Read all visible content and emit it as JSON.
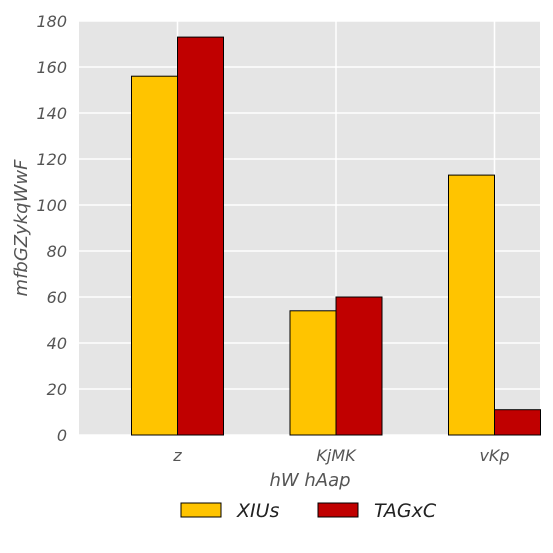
{
  "chart_data": {
    "type": "bar",
    "categories": [
      "z",
      "KjMK",
      "vKp"
    ],
    "series": [
      {
        "name": "XIUs",
        "values": [
          156,
          54,
          113
        ],
        "color": "#FFC400"
      },
      {
        "name": "TAGxC",
        "values": [
          173,
          60,
          11
        ],
        "color": "#C00000"
      }
    ],
    "xlabel": "hW hAap",
    "ylabel": "mfbGZykqWwF",
    "ylim": [
      0,
      180
    ],
    "yticks": [
      0,
      20,
      40,
      60,
      80,
      100,
      120,
      140,
      160,
      180
    ],
    "grid": true,
    "legend": "bottom-center",
    "background": "#E5E5E5",
    "grid_color": "#FFFFFF"
  }
}
